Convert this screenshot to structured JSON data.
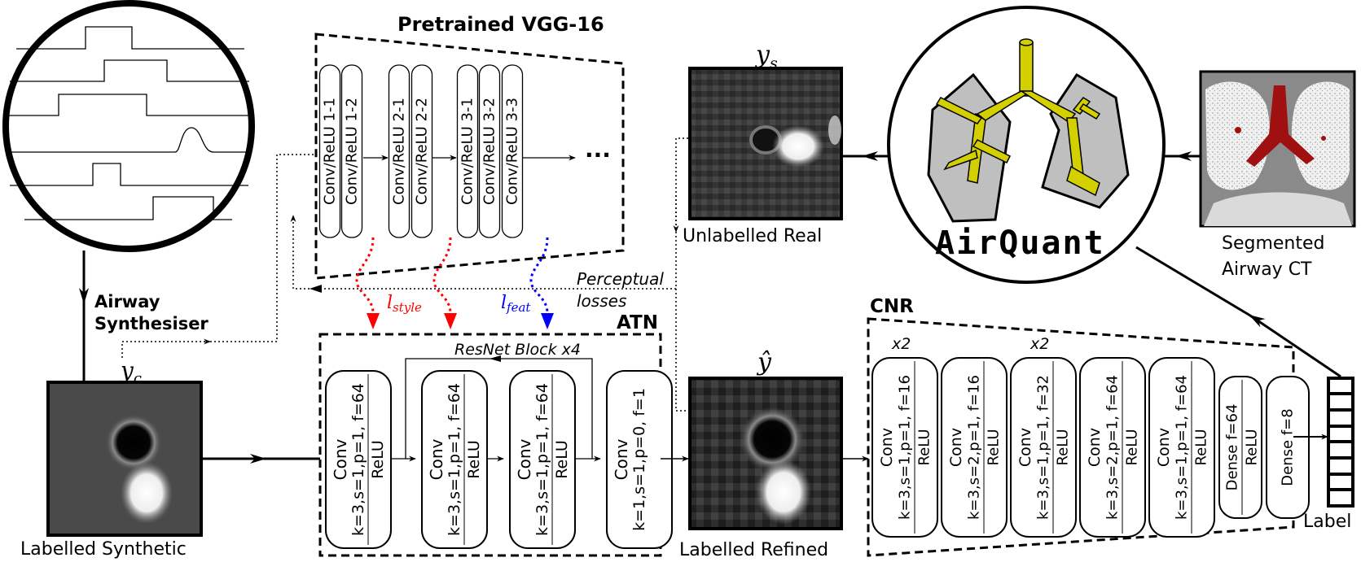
{
  "labels": {
    "pretrained_vgg": "Pretrained VGG-16",
    "airway_synthesiser_line1": "Airway",
    "airway_synthesiser_line2": "Synthesiser",
    "y_c": "y",
    "y_c_sub": "c",
    "y_s": "y",
    "y_s_sub": "s",
    "y_hat": "ŷ",
    "labelled_synthetic": "Labelled Synthetic",
    "unlabelled_real": "Unlabelled Real",
    "labelled_refined": "Labelled Refined",
    "segmented_line1": "Segmented",
    "segmented_line2": "Airway CT",
    "perceptual_line1": "Perceptual",
    "perceptual_line2": "losses",
    "l_style": "l",
    "l_style_sub": "style",
    "l_feat": "l",
    "l_feat_sub": "feat",
    "atn": "ATN",
    "cnr": "CNR",
    "resnet_block": "ResNet Block x4",
    "label": "Label",
    "airquant": "AirQuant",
    "vgg_ellipsis": "···",
    "x2_a": "x2",
    "x2_b": "x2"
  },
  "vgg_layers": [
    "Conv/ReLU 1-1",
    "Conv/ReLU 1-2",
    "Conv/ReLU 2-1",
    "Conv/ReLU 2-2",
    "Conv/ReLU 3-1",
    "Conv/ReLU 3-2",
    "Conv/ReLU 3-3"
  ],
  "atn_blocks": [
    {
      "name": "Conv",
      "params": "k=3,s=1,p=1, f=64",
      "act": "ReLU"
    },
    {
      "name": "Conv",
      "params": "k=3,s=1,p=1, f=64",
      "act": "ReLU"
    },
    {
      "name": "Conv",
      "params": "k=3,s=1,p=1, f=64",
      "act": "ReLU"
    },
    {
      "name": "Conv",
      "params": "k=1,s=1,p=0, f=1",
      "act": ""
    }
  ],
  "cnr_blocks": [
    {
      "name": "Conv",
      "params": "k=3,s=1,p=1, f=16",
      "act": "ReLU"
    },
    {
      "name": "Conv",
      "params": "k=3,s=2,p=1, f=16",
      "act": "ReLU"
    },
    {
      "name": "Conv",
      "params": "k=3,s=1,p=1, f=32",
      "act": "ReLU"
    },
    {
      "name": "Conv",
      "params": "k=3,s=2,p=1, f=64",
      "act": "ReLU"
    },
    {
      "name": "Conv",
      "params": "k=3,s=1,p=1, f=64",
      "act": "ReLU"
    }
  ],
  "cnr_dense": [
    {
      "params": "Dense  f=64",
      "act": "ReLU"
    },
    {
      "params": "Dense  f=8",
      "act": ""
    }
  ],
  "colors": {
    "style_loss": "#ff0000",
    "feat_loss": "#0000ff",
    "airway_yellow": "#d4d000",
    "lung_grey": "#bfbfbf",
    "segmentation_red": "#a01010"
  }
}
